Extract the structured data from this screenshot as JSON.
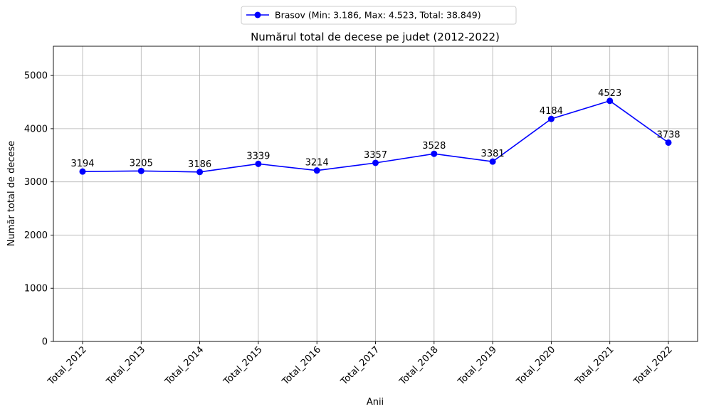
{
  "chart_data": {
    "type": "line",
    "title": "Numărul total de decese pe judet (2012-2022)",
    "xlabel": "Anii",
    "ylabel": "Număr total de decese",
    "categories": [
      "Total_2012",
      "Total_2013",
      "Total_2014",
      "Total_2015",
      "Total_2016",
      "Total_2017",
      "Total_2018",
      "Total_2019",
      "Total_2020",
      "Total_2021",
      "Total_2022"
    ],
    "series": [
      {
        "name": "Brasov (Min: 3.186, Max: 4.523, Total: 38.849)",
        "values": [
          3194,
          3205,
          3186,
          3339,
          3214,
          3357,
          3528,
          3381,
          4184,
          4523,
          3738
        ],
        "color": "#0000ff",
        "marker": "circle"
      }
    ],
    "ylim": [
      0,
      5550
    ],
    "yticks": [
      0,
      1000,
      2000,
      3000,
      4000,
      5000
    ],
    "grid": true,
    "legend_position": "top-center",
    "data_labels": true
  }
}
